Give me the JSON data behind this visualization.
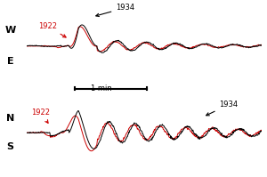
{
  "title": "",
  "bg_color": "#ffffff",
  "we_label_top": "W",
  "we_label_bot": "E",
  "ns_label_top": "N",
  "ns_label_bot": "S",
  "label_1922_color": "#cc0000",
  "label_1934_color": "#000000",
  "color_1922": "#cc0000",
  "color_1934": "#000000",
  "scale_bar_label": "1 min",
  "n_points": 500,
  "seed": 42
}
